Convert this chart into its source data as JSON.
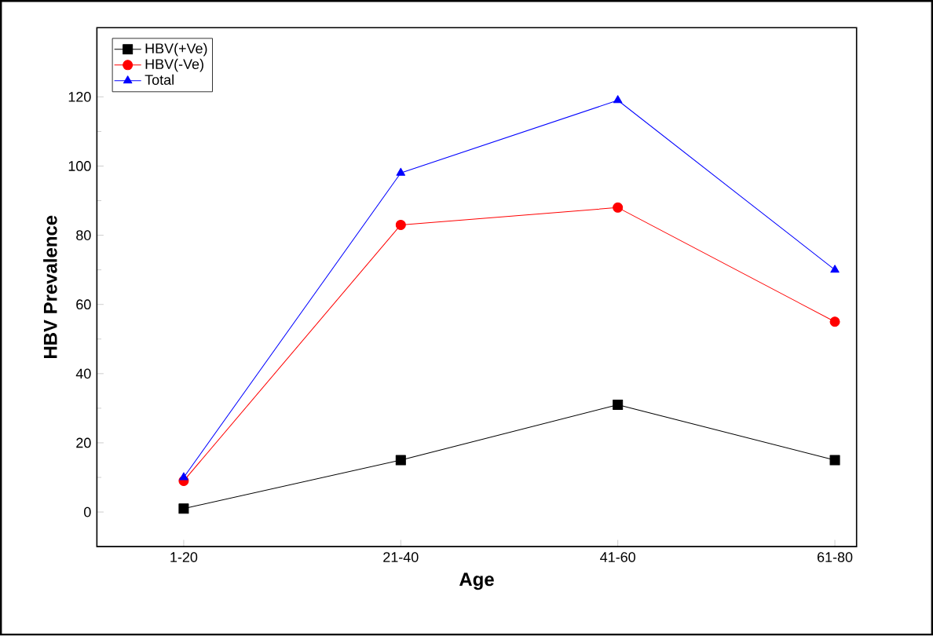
{
  "chart_data": {
    "type": "line",
    "xlabel": "Age",
    "ylabel": "HBV Prevalence",
    "categories": [
      "1-20",
      "21-40",
      "41-60",
      "61-80"
    ],
    "series": [
      {
        "name": "HBV(+Ve)",
        "color": "#000000",
        "marker": "square",
        "values": [
          1,
          15,
          31,
          15
        ]
      },
      {
        "name": "HBV(-Ve)",
        "color": "#ff0000",
        "marker": "circle",
        "values": [
          9,
          83,
          88,
          55
        ]
      },
      {
        "name": "Total",
        "color": "#0000ff",
        "marker": "triangle",
        "values": [
          10,
          98,
          119,
          70
        ]
      }
    ],
    "ylim": [
      -10,
      140
    ],
    "yticks": [
      0,
      20,
      40,
      60,
      80,
      100,
      120
    ],
    "legend": "top left",
    "grid": false,
    "line_style": "solid"
  }
}
